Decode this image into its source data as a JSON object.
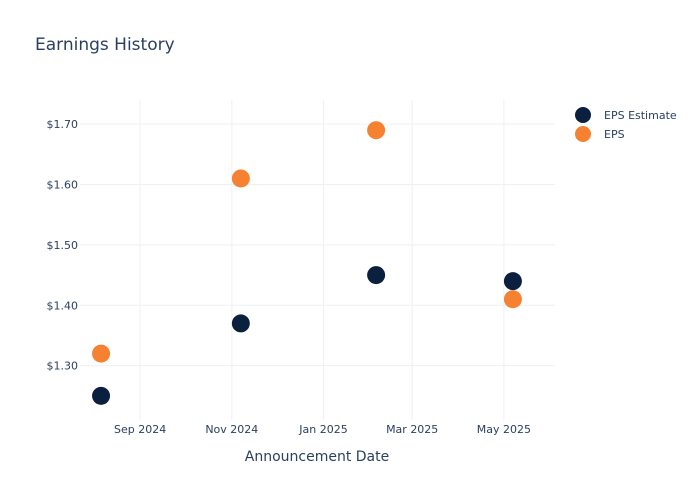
{
  "chart_data": {
    "type": "scatter",
    "title": "Earnings History",
    "xlabel": "Announcement Date",
    "ylabel": "",
    "x_ticks": [
      "2024-09-01",
      "2024-11-01",
      "2025-01-01",
      "2025-03-01",
      "2025-05-01"
    ],
    "x_tick_labels": [
      "Sep 2024",
      "Nov 2024",
      "Jan 2025",
      "Mar 2025",
      "May 2025"
    ],
    "xlim": [
      "2024-07-23",
      "2025-06-04"
    ],
    "y_ticks": [
      1.3,
      1.4,
      1.5,
      1.6,
      1.7
    ],
    "y_tick_labels": [
      "$1.30",
      "$1.40",
      "$1.50",
      "$1.60",
      "$1.70"
    ],
    "ylim": [
      1.21,
      1.74
    ],
    "grid": true,
    "legend_position": "top-right",
    "series": [
      {
        "name": "EPS Estimate",
        "color": "#0b1f3f",
        "points": [
          {
            "x": "2024-08-06",
            "y": 1.25
          },
          {
            "x": "2024-11-07",
            "y": 1.37
          },
          {
            "x": "2025-02-05",
            "y": 1.45
          },
          {
            "x": "2025-05-07",
            "y": 1.44
          }
        ]
      },
      {
        "name": "EPS",
        "color": "#f58131",
        "points": [
          {
            "x": "2024-08-06",
            "y": 1.32
          },
          {
            "x": "2024-11-07",
            "y": 1.61
          },
          {
            "x": "2025-02-05",
            "y": 1.69
          },
          {
            "x": "2025-05-07",
            "y": 1.41
          }
        ]
      }
    ]
  }
}
